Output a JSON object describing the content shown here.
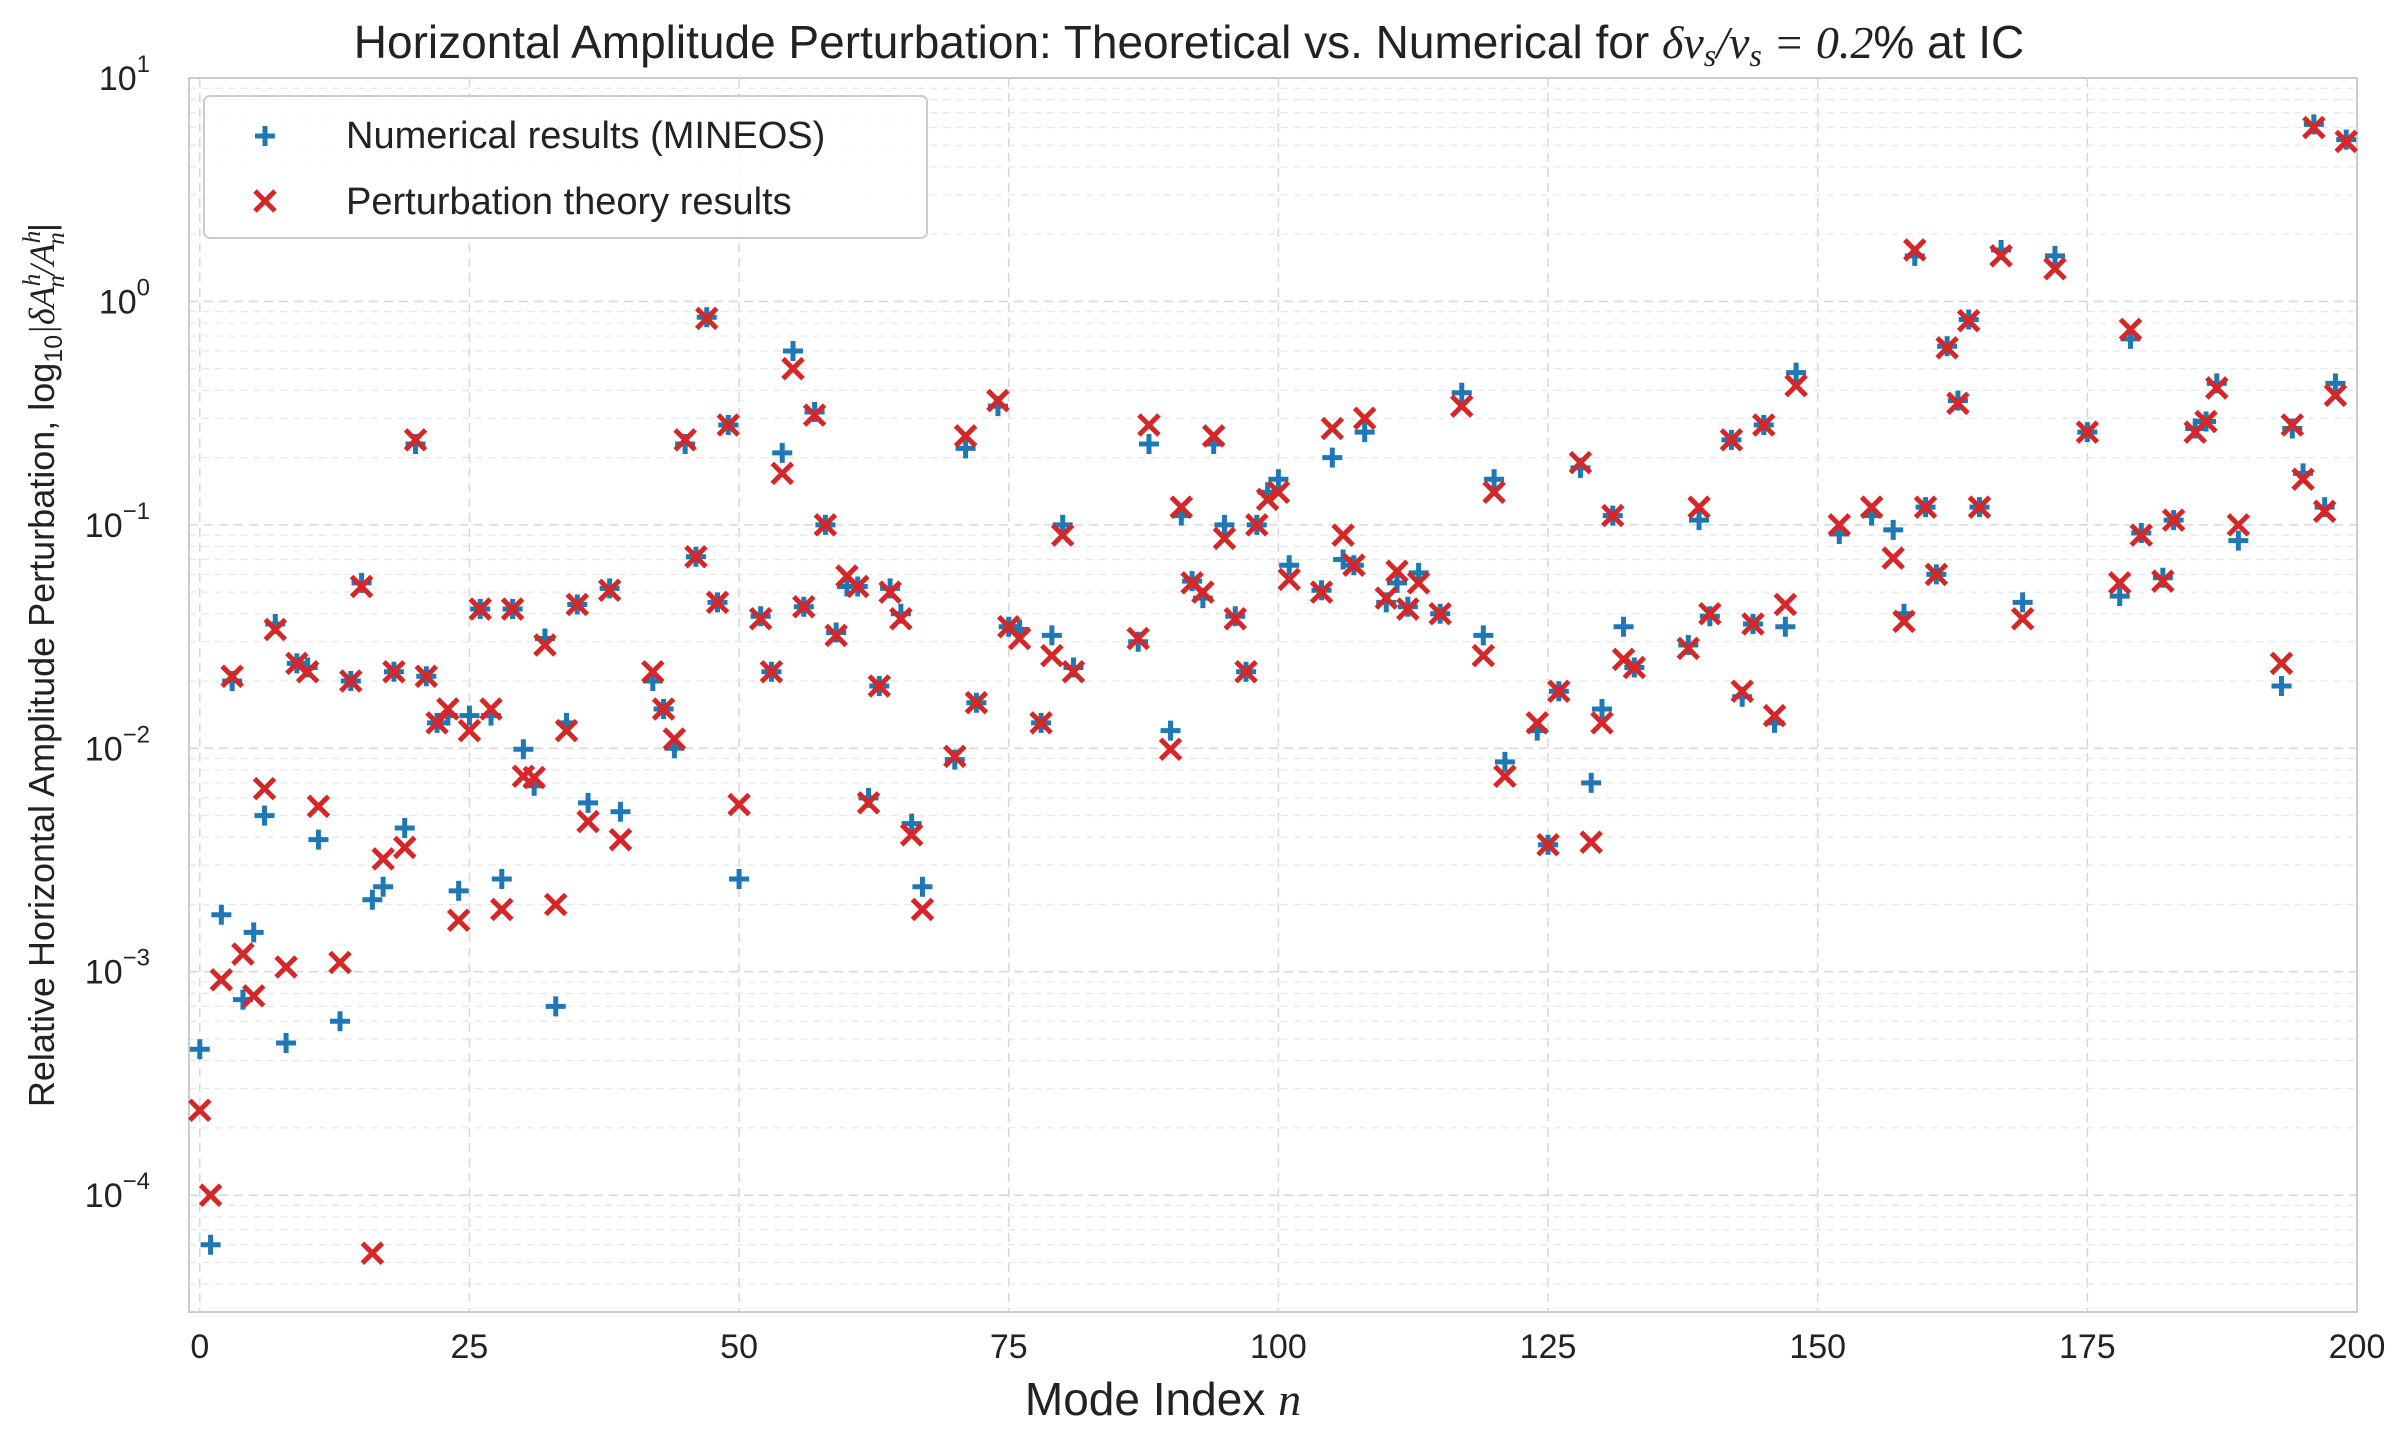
{
  "chart_data": {
    "type": "scatter",
    "title": {
      "prefix": "Horizontal Amplitude Perturbation: Theoretical vs. Numerical for ",
      "math_lhs": "δv",
      "math_sub1": "s",
      "math_mid": "/v",
      "math_sub2": "s",
      "math_rhs": " = 0.2",
      "suffix": "% at IC"
    },
    "xlabel": {
      "text": "Mode Index ",
      "math": "n"
    },
    "ylabel": {
      "text": "Relative Horizontal Amplitude Perturbation, log",
      "sub": "10",
      "math": "|δA",
      "math_sup": "h",
      "math_sub": "n",
      "math2": "/A",
      "math2_sup": "h",
      "math2_sub": "n",
      "end": "|"
    },
    "xlim": [
      -1,
      200
    ],
    "ylim": [
      3e-05,
      10
    ],
    "yscale": "log",
    "grid": true,
    "legend_position": "top-left",
    "xticks": [
      0,
      25,
      50,
      75,
      100,
      125,
      150,
      175,
      200
    ],
    "yticks": [
      {
        "value": 0.0001,
        "base": "10",
        "exp": "−4"
      },
      {
        "value": 0.001,
        "base": "10",
        "exp": "−3"
      },
      {
        "value": 0.01,
        "base": "10",
        "exp": "−2"
      },
      {
        "value": 0.1,
        "base": "10",
        "exp": "−1"
      },
      {
        "value": 1,
        "base": "10",
        "exp": "0"
      },
      {
        "value": 10,
        "base": "10",
        "exp": "1"
      }
    ],
    "colors": {
      "numerical": "#1f77b4",
      "theory": "#d62728"
    },
    "series": [
      {
        "name": "Numerical results (MINEOS)",
        "marker": "plus",
        "points": [
          [
            0,
            0.00045
          ],
          [
            1,
            6e-05
          ],
          [
            2,
            0.0018
          ],
          [
            3,
            0.02
          ],
          [
            4,
            0.00075
          ],
          [
            5,
            0.0015
          ],
          [
            6,
            0.005
          ],
          [
            7,
            0.036
          ],
          [
            8,
            0.00048
          ],
          [
            9,
            0.024
          ],
          [
            10,
            0.023
          ],
          [
            11,
            0.0039
          ],
          [
            13,
            0.0006
          ],
          [
            14,
            0.02
          ],
          [
            15,
            0.055
          ],
          [
            16,
            0.0021
          ],
          [
            17,
            0.0024
          ],
          [
            18,
            0.022
          ],
          [
            19,
            0.0044
          ],
          [
            20,
            0.23
          ],
          [
            21,
            0.021
          ],
          [
            22,
            0.013
          ],
          [
            23,
            0.014
          ],
          [
            24,
            0.0023
          ],
          [
            25,
            0.014
          ],
          [
            26,
            0.042
          ],
          [
            27,
            0.014
          ],
          [
            28,
            0.0026
          ],
          [
            29,
            0.042
          ],
          [
            30,
            0.0099
          ],
          [
            31,
            0.0068
          ],
          [
            32,
            0.031
          ],
          [
            33,
            0.0007
          ],
          [
            34,
            0.013
          ],
          [
            35,
            0.044
          ],
          [
            36,
            0.0057
          ],
          [
            38,
            0.052
          ],
          [
            39,
            0.0052
          ],
          [
            42,
            0.02
          ],
          [
            43,
            0.015
          ],
          [
            44,
            0.01
          ],
          [
            45,
            0.23
          ],
          [
            46,
            0.072
          ],
          [
            47,
            0.85
          ],
          [
            48,
            0.045
          ],
          [
            49,
            0.28
          ],
          [
            50,
            0.0026
          ],
          [
            52,
            0.039
          ],
          [
            53,
            0.022
          ],
          [
            54,
            0.21
          ],
          [
            55,
            0.6
          ],
          [
            56,
            0.043
          ],
          [
            57,
            0.32
          ],
          [
            58,
            0.1
          ],
          [
            59,
            0.033
          ],
          [
            60,
            0.053
          ],
          [
            61,
            0.053
          ],
          [
            62,
            0.006
          ],
          [
            63,
            0.019
          ],
          [
            64,
            0.052
          ],
          [
            65,
            0.04
          ],
          [
            66,
            0.0046
          ],
          [
            67,
            0.0024
          ],
          [
            70,
            0.0089
          ],
          [
            71,
            0.22
          ],
          [
            72,
            0.016
          ],
          [
            74,
            0.34
          ],
          [
            75,
            0.035
          ],
          [
            76,
            0.034
          ],
          [
            78,
            0.013
          ],
          [
            79,
            0.032
          ],
          [
            80,
            0.1
          ],
          [
            81,
            0.023
          ],
          [
            87,
            0.03
          ],
          [
            88,
            0.23
          ],
          [
            90,
            0.012
          ],
          [
            91,
            0.11
          ],
          [
            92,
            0.056
          ],
          [
            93,
            0.047
          ],
          [
            94,
            0.23
          ],
          [
            95,
            0.1
          ],
          [
            96,
            0.039
          ],
          [
            97,
            0.022
          ],
          [
            98,
            0.1
          ],
          [
            99,
            0.14
          ],
          [
            100,
            0.16
          ],
          [
            101,
            0.066
          ],
          [
            104,
            0.051
          ],
          [
            105,
            0.2
          ],
          [
            106,
            0.07
          ],
          [
            107,
            0.066
          ],
          [
            108,
            0.26
          ],
          [
            110,
            0.045
          ],
          [
            111,
            0.055
          ],
          [
            112,
            0.043
          ],
          [
            113,
            0.061
          ],
          [
            115,
            0.04
          ],
          [
            117,
            0.39
          ],
          [
            119,
            0.032
          ],
          [
            120,
            0.16
          ],
          [
            121,
            0.0087
          ],
          [
            124,
            0.012
          ],
          [
            125,
            0.0037
          ],
          [
            126,
            0.018
          ],
          [
            128,
            0.18
          ],
          [
            129,
            0.007
          ],
          [
            130,
            0.015
          ],
          [
            131,
            0.11
          ],
          [
            132,
            0.035
          ],
          [
            133,
            0.023
          ],
          [
            138,
            0.029
          ],
          [
            139,
            0.105
          ],
          [
            140,
            0.039
          ],
          [
            142,
            0.24
          ],
          [
            143,
            0.017
          ],
          [
            144,
            0.036
          ],
          [
            145,
            0.28
          ],
          [
            146,
            0.013
          ],
          [
            147,
            0.035
          ],
          [
            148,
            0.48
          ],
          [
            152,
            0.091
          ],
          [
            155,
            0.11
          ],
          [
            157,
            0.095
          ],
          [
            158,
            0.04
          ],
          [
            159,
            1.6
          ],
          [
            160,
            0.12
          ],
          [
            161,
            0.06
          ],
          [
            162,
            0.63
          ],
          [
            163,
            0.36
          ],
          [
            164,
            0.83
          ],
          [
            165,
            0.12
          ],
          [
            167,
            1.7
          ],
          [
            169,
            0.045
          ],
          [
            172,
            1.6
          ],
          [
            175,
            0.26
          ],
          [
            178,
            0.048
          ],
          [
            179,
            0.68
          ],
          [
            180,
            0.092
          ],
          [
            182,
            0.058
          ],
          [
            183,
            0.105
          ],
          [
            185,
            0.27
          ],
          [
            186,
            0.29
          ],
          [
            187,
            0.43
          ],
          [
            189,
            0.085
          ],
          [
            193,
            0.019
          ],
          [
            194,
            0.27
          ],
          [
            195,
            0.17
          ],
          [
            196,
            6.2
          ],
          [
            197,
            0.12
          ],
          [
            198,
            0.43
          ],
          [
            199,
            5.3
          ]
        ]
      },
      {
        "name": "Perturbation theory results",
        "marker": "x",
        "points": [
          [
            0,
            0.00024
          ],
          [
            1,
            0.0001
          ],
          [
            2,
            0.00092
          ],
          [
            3,
            0.021
          ],
          [
            4,
            0.0012
          ],
          [
            5,
            0.00078
          ],
          [
            6,
            0.0066
          ],
          [
            7,
            0.034
          ],
          [
            8,
            0.00105
          ],
          [
            9,
            0.024
          ],
          [
            10,
            0.022
          ],
          [
            11,
            0.0055
          ],
          [
            13,
            0.0011
          ],
          [
            14,
            0.02
          ],
          [
            15,
            0.053
          ],
          [
            16,
            5.5e-05
          ],
          [
            17,
            0.0032
          ],
          [
            18,
            0.022
          ],
          [
            19,
            0.0036
          ],
          [
            20,
            0.24
          ],
          [
            21,
            0.021
          ],
          [
            22,
            0.013
          ],
          [
            23,
            0.015
          ],
          [
            24,
            0.0017
          ],
          [
            25,
            0.012
          ],
          [
            26,
            0.042
          ],
          [
            27,
            0.015
          ],
          [
            28,
            0.0019
          ],
          [
            29,
            0.042
          ],
          [
            30,
            0.0075
          ],
          [
            31,
            0.0074
          ],
          [
            32,
            0.029
          ],
          [
            33,
            0.002
          ],
          [
            34,
            0.012
          ],
          [
            35,
            0.044
          ],
          [
            36,
            0.0047
          ],
          [
            38,
            0.051
          ],
          [
            39,
            0.0039
          ],
          [
            42,
            0.022
          ],
          [
            43,
            0.015
          ],
          [
            44,
            0.011
          ],
          [
            45,
            0.24
          ],
          [
            46,
            0.072
          ],
          [
            47,
            0.84
          ],
          [
            48,
            0.045
          ],
          [
            49,
            0.28
          ],
          [
            50,
            0.0056
          ],
          [
            52,
            0.038
          ],
          [
            53,
            0.022
          ],
          [
            54,
            0.17
          ],
          [
            55,
            0.5
          ],
          [
            56,
            0.043
          ],
          [
            57,
            0.31
          ],
          [
            58,
            0.1
          ],
          [
            59,
            0.032
          ],
          [
            60,
            0.059
          ],
          [
            61,
            0.053
          ],
          [
            62,
            0.0057
          ],
          [
            63,
            0.019
          ],
          [
            64,
            0.05
          ],
          [
            65,
            0.038
          ],
          [
            66,
            0.0041
          ],
          [
            67,
            0.0019
          ],
          [
            70,
            0.0092
          ],
          [
            71,
            0.25
          ],
          [
            72,
            0.016
          ],
          [
            74,
            0.36
          ],
          [
            75,
            0.035
          ],
          [
            76,
            0.031
          ],
          [
            78,
            0.013
          ],
          [
            79,
            0.026
          ],
          [
            80,
            0.09
          ],
          [
            81,
            0.022
          ],
          [
            87,
            0.031
          ],
          [
            88,
            0.28
          ],
          [
            90,
            0.0099
          ],
          [
            91,
            0.12
          ],
          [
            92,
            0.055
          ],
          [
            93,
            0.05
          ],
          [
            94,
            0.25
          ],
          [
            95,
            0.087
          ],
          [
            96,
            0.038
          ],
          [
            97,
            0.022
          ],
          [
            98,
            0.1
          ],
          [
            99,
            0.13
          ],
          [
            100,
            0.14
          ],
          [
            101,
            0.057
          ],
          [
            104,
            0.05
          ],
          [
            105,
            0.27
          ],
          [
            106,
            0.09
          ],
          [
            107,
            0.066
          ],
          [
            108,
            0.3
          ],
          [
            110,
            0.047
          ],
          [
            111,
            0.062
          ],
          [
            112,
            0.042
          ],
          [
            113,
            0.055
          ],
          [
            115,
            0.04
          ],
          [
            117,
            0.34
          ],
          [
            119,
            0.026
          ],
          [
            120,
            0.14
          ],
          [
            121,
            0.0075
          ],
          [
            124,
            0.013
          ],
          [
            125,
            0.0037
          ],
          [
            126,
            0.018
          ],
          [
            128,
            0.19
          ],
          [
            129,
            0.0038
          ],
          [
            130,
            0.013
          ],
          [
            131,
            0.11
          ],
          [
            132,
            0.025
          ],
          [
            133,
            0.023
          ],
          [
            138,
            0.028
          ],
          [
            139,
            0.12
          ],
          [
            140,
            0.04
          ],
          [
            142,
            0.24
          ],
          [
            143,
            0.018
          ],
          [
            144,
            0.036
          ],
          [
            145,
            0.28
          ],
          [
            146,
            0.014
          ],
          [
            147,
            0.044
          ],
          [
            148,
            0.42
          ],
          [
            152,
            0.1
          ],
          [
            155,
            0.12
          ],
          [
            157,
            0.071
          ],
          [
            158,
            0.037
          ],
          [
            159,
            1.7
          ],
          [
            160,
            0.12
          ],
          [
            161,
            0.06
          ],
          [
            162,
            0.62
          ],
          [
            163,
            0.35
          ],
          [
            164,
            0.82
          ],
          [
            165,
            0.12
          ],
          [
            167,
            1.6
          ],
          [
            169,
            0.038
          ],
          [
            172,
            1.4
          ],
          [
            175,
            0.26
          ],
          [
            178,
            0.055
          ],
          [
            179,
            0.75
          ],
          [
            180,
            0.09
          ],
          [
            182,
            0.056
          ],
          [
            183,
            0.105
          ],
          [
            185,
            0.26
          ],
          [
            186,
            0.29
          ],
          [
            187,
            0.41
          ],
          [
            189,
            0.1
          ],
          [
            193,
            0.024
          ],
          [
            194,
            0.28
          ],
          [
            195,
            0.16
          ],
          [
            196,
            6.0
          ],
          [
            197,
            0.115
          ],
          [
            198,
            0.38
          ],
          [
            199,
            5.2
          ]
        ]
      }
    ]
  }
}
